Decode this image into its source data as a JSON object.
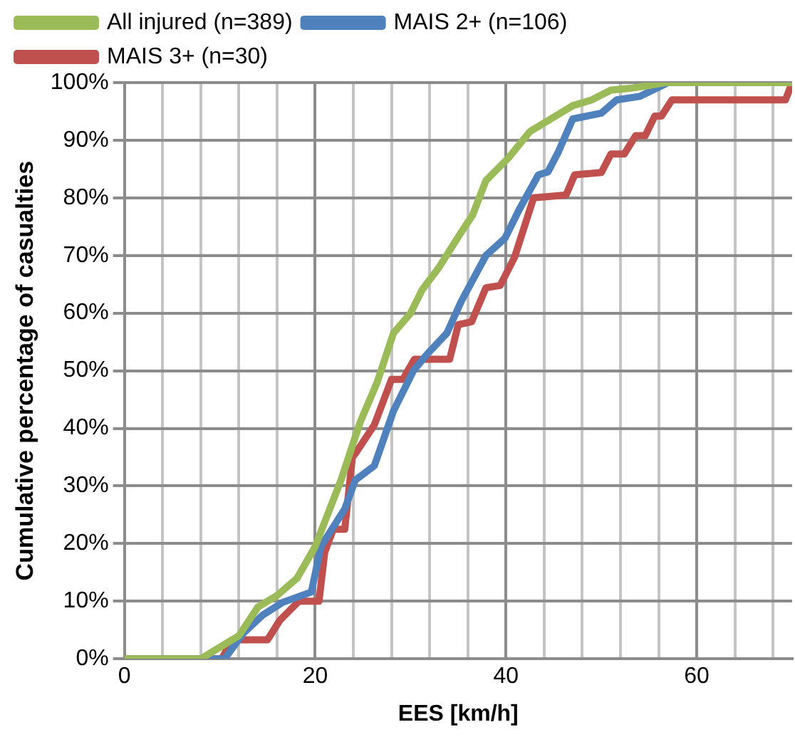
{
  "chart_data": {
    "type": "line",
    "xlabel": "EES [km/h]",
    "ylabel": "Cumulative percentage of casualties",
    "xlim": [
      0,
      70
    ],
    "ylim": [
      0,
      100
    ],
    "xticks": [
      0,
      {
        "value": 4,
        "label": null
      },
      {
        "value": 8,
        "label": null
      },
      {
        "value": 12,
        "label": null
      },
      {
        "value": 16,
        "label": null
      },
      20,
      {
        "value": 24,
        "label": null
      },
      {
        "value": 28,
        "label": null
      },
      {
        "value": 32,
        "label": null
      },
      {
        "value": 36,
        "label": null
      },
      40,
      {
        "value": 44,
        "label": null
      },
      {
        "value": 48,
        "label": null
      },
      {
        "value": 52,
        "label": null
      },
      {
        "value": 56,
        "label": null
      },
      60,
      {
        "value": 64,
        "label": null
      },
      {
        "value": 68,
        "label": null
      }
    ],
    "yticks": [
      {
        "value": 0,
        "label": "0%"
      },
      {
        "value": 10,
        "label": "10%"
      },
      {
        "value": 20,
        "label": "20%"
      },
      {
        "value": 30,
        "label": "30%"
      },
      {
        "value": 40,
        "label": "40%"
      },
      {
        "value": 50,
        "label": "50%"
      },
      {
        "value": 60,
        "label": "60%"
      },
      {
        "value": 70,
        "label": "70%"
      },
      {
        "value": 80,
        "label": "80%"
      },
      {
        "value": 90,
        "label": "90%"
      },
      {
        "value": 100,
        "label": "100%"
      }
    ],
    "grid": true,
    "legend": "top",
    "marker": "none",
    "line_style": "solid",
    "series": [
      {
        "name": "All injured (n=389)",
        "color": "#9bbb59",
        "x": [
          0,
          8,
          9,
          12,
          14,
          16,
          18.1,
          20,
          22.7,
          24.7,
          26.5,
          28.2,
          30,
          31.2,
          33,
          35.3,
          36.5,
          37.9,
          40.3,
          42.5,
          44.4,
          46,
          47,
          49,
          51,
          53,
          55,
          56.6,
          70
        ],
        "values": [
          0,
          0,
          1,
          4,
          9,
          11,
          14,
          19.5,
          31,
          41,
          48,
          56.5,
          60,
          64,
          68,
          74,
          77,
          83,
          87,
          91.5,
          93.4,
          95,
          96,
          97,
          98.7,
          99,
          99.5,
          100,
          100
        ]
      },
      {
        "name": "MAIS 2+ (n=106)",
        "color": "#4f81bd",
        "x": [
          0,
          10.5,
          12.5,
          14.5,
          16.6,
          19.6,
          20.6,
          23.1,
          24.2,
          26.2,
          28.2,
          30.3,
          31.8,
          33.8,
          35.3,
          37.9,
          39.9,
          41.4,
          43.4,
          44.4,
          45.5,
          47,
          50,
          51.6,
          54,
          57,
          70
        ],
        "values": [
          0,
          0,
          4.5,
          7.6,
          9.8,
          11.6,
          19.5,
          26,
          31,
          33.5,
          43,
          50,
          53,
          56.5,
          62,
          70,
          73,
          78,
          84,
          84.5,
          88,
          93.7,
          94.7,
          97,
          97.6,
          100,
          100
        ]
      },
      {
        "name": "MAIS 3+ (n=30)",
        "color": "#c0504d",
        "x": [
          0,
          10.2,
          11.3,
          15,
          16.3,
          18.3,
          20.4,
          21,
          21.9,
          23.1,
          23.9,
          24.2,
          26.2,
          28,
          29.2,
          30.4,
          34.1,
          35,
          36.4,
          37.9,
          39.4,
          40.9,
          42.9,
          46.3,
          47.2,
          50,
          51,
          52.4,
          53.6,
          54.6,
          55.6,
          56.3,
          57.4,
          69.3,
          70
        ],
        "values": [
          0,
          0,
          3.3,
          3.3,
          6.7,
          10,
          10,
          18.5,
          22.5,
          22.5,
          35,
          35.6,
          40.6,
          48.5,
          48.5,
          52,
          52,
          58,
          58.5,
          64.4,
          64.8,
          69.7,
          80,
          80.5,
          84,
          84.4,
          87.6,
          87.6,
          90.8,
          90.8,
          94.2,
          94.2,
          97,
          97,
          100
        ]
      }
    ]
  }
}
